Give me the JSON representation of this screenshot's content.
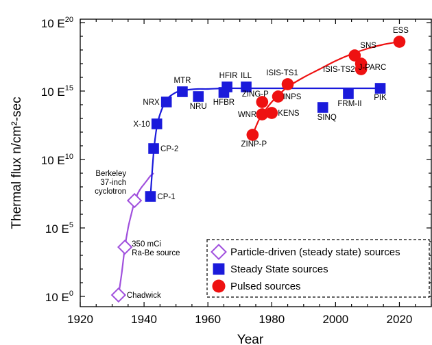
{
  "chart_data": {
    "type": "scatter",
    "xlabel": "Year",
    "ylabel": "Thermal flux n/cm²-sec",
    "xlim": [
      1920,
      2030
    ],
    "ylim_log10": [
      0,
      20
    ],
    "y_scale": "log",
    "x_ticks": [
      1920,
      1940,
      1960,
      1980,
      2000,
      2020
    ],
    "y_ticks": [
      {
        "base": "10 E",
        "exp": "0",
        "value": 0
      },
      {
        "base": "10 E",
        "exp": "5",
        "value": 5
      },
      {
        "base": "10 E",
        "exp": "10",
        "value": 10
      },
      {
        "base": "10 E",
        "exp": "15",
        "value": 15
      },
      {
        "base": "10 E",
        "exp": "20",
        "value": 20
      }
    ],
    "legend_position": "bottom-right",
    "series": [
      {
        "name": "Particle-driven (steady state) sources",
        "color": "#a050dd",
        "marker": "open-diamond",
        "points": [
          {
            "label": "Chadwick",
            "x": 1932,
            "y_log10": 0.1
          },
          {
            "label": "350 mCi Ra-Be source",
            "x": 1934,
            "y_log10": 3.6
          },
          {
            "label": "Berkeley 37-inch cyclotron",
            "x": 1937,
            "y_log10": 7.0
          }
        ]
      },
      {
        "name": "Steady State sources",
        "color": "#1a1adb",
        "marker": "square",
        "points": [
          {
            "label": "CP-1",
            "x": 1942,
            "y_log10": 7.3
          },
          {
            "label": "CP-2",
            "x": 1943,
            "y_log10": 10.8
          },
          {
            "label": "X-10",
            "x": 1944,
            "y_log10": 12.6
          },
          {
            "label": "NRX",
            "x": 1947,
            "y_log10": 14.2
          },
          {
            "label": "MTR",
            "x": 1952,
            "y_log10": 14.95
          },
          {
            "label": "NRU",
            "x": 1957,
            "y_log10": 14.6
          },
          {
            "label": "HFBR",
            "x": 1965,
            "y_log10": 14.9
          },
          {
            "label": "HFIR",
            "x": 1966,
            "y_log10": 15.3
          },
          {
            "label": "ILL",
            "x": 1972,
            "y_log10": 15.3
          },
          {
            "label": "SINQ",
            "x": 1996,
            "y_log10": 13.8
          },
          {
            "label": "FRM-II",
            "x": 2004,
            "y_log10": 14.8
          },
          {
            "label": "PIK",
            "x": 2014,
            "y_log10": 15.2
          }
        ]
      },
      {
        "name": "Pulsed sources",
        "color": "#ee1111",
        "marker": "circle",
        "points": [
          {
            "label": "ZINP-P",
            "x": 1974,
            "y_log10": 11.8
          },
          {
            "label": "ZING-P",
            "x": 1977,
            "y_log10": 14.2
          },
          {
            "label": "WNR",
            "x": 1977,
            "y_log10": 13.3
          },
          {
            "label": "KENS",
            "x": 1980,
            "y_log10": 13.4
          },
          {
            "label": "INPS",
            "x": 1982,
            "y_log10": 14.6
          },
          {
            "label": "ISIS-TS1",
            "x": 1985,
            "y_log10": 15.5
          },
          {
            "label": "ISIS-TS2",
            "x": 2008,
            "y_log10": 16.6
          },
          {
            "label": "J-PARC",
            "x": 2008,
            "y_log10": 17.0
          },
          {
            "label": "SNS",
            "x": 2006,
            "y_log10": 17.6
          },
          {
            "label": "ESS",
            "x": 2020,
            "y_log10": 18.6
          }
        ]
      }
    ],
    "curves": [
      {
        "series": "Particle-driven (steady state) sources",
        "color": "#a050dd",
        "x": [
          1932,
          1933,
          1934,
          1935,
          1936,
          1937,
          1938,
          1939,
          1940,
          1941,
          1942,
          1943
        ],
        "y_log10": [
          0.1,
          1.7,
          3.6,
          5.0,
          6.0,
          6.9,
          7.5,
          7.9,
          8.2,
          8.5,
          8.8,
          9.0
        ]
      },
      {
        "series": "Steady State sources",
        "color": "#1a1adb",
        "x": [
          1942,
          1943,
          1944,
          1945,
          1946,
          1947,
          1948,
          1950,
          1952,
          1954,
          1957,
          1960,
          1965,
          1970,
          1980,
          1990,
          2000,
          2014
        ],
        "y_log10": [
          7.3,
          10.5,
          12.4,
          13.3,
          13.9,
          14.3,
          14.6,
          14.9,
          15.05,
          15.1,
          15.15,
          15.15,
          15.2,
          15.2,
          15.2,
          15.2,
          15.2,
          15.2
        ]
      },
      {
        "series": "Pulsed sources",
        "color": "#ee1111",
        "x": [
          1974,
          1976,
          1978,
          1980,
          1983,
          1985,
          1990,
          1995,
          2000,
          2005,
          2010,
          2015,
          2020
        ],
        "y_log10": [
          11.8,
          12.9,
          13.6,
          14.2,
          14.9,
          15.3,
          16.0,
          16.6,
          17.2,
          17.7,
          18.1,
          18.4,
          18.6
        ]
      }
    ]
  }
}
